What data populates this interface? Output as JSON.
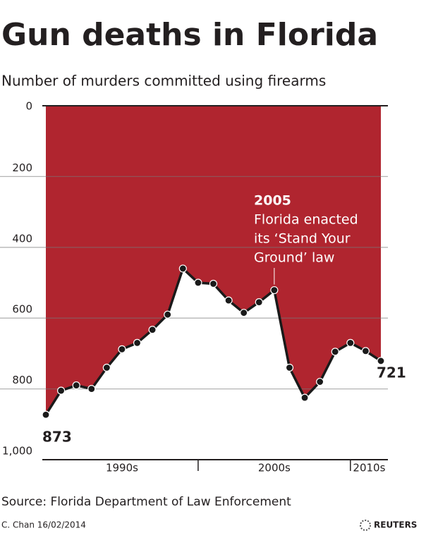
{
  "chart_data": {
    "type": "line",
    "title": "Gun deaths in Florida",
    "subtitle": "Number of murders committed using firearms",
    "categories": [
      null,
      null,
      null,
      null,
      null,
      null,
      null,
      null,
      null,
      null,
      null,
      null,
      null,
      null,
      null,
      null,
      null,
      null,
      null,
      null,
      null,
      null,
      null
    ],
    "category_groups": [
      {
        "label": "1990s",
        "size": 10
      },
      {
        "label": "2000s",
        "size": 10
      },
      {
        "label": "2010s",
        "size": 3
      }
    ],
    "values": [
      873,
      805,
      790,
      800,
      740,
      688,
      670,
      633,
      590,
      460,
      500,
      503,
      550,
      585,
      555,
      521,
      740,
      825,
      780,
      695,
      670,
      693,
      721
    ],
    "color": "#b0252f",
    "ylim": [
      0,
      1000
    ],
    "y_inverted": true,
    "yticks": [
      0,
      200,
      400,
      600,
      800,
      {
        "value": 1000,
        "label": "1,000"
      }
    ],
    "grid": true,
    "annotation": {
      "index": 15,
      "title": "2005",
      "lines": [
        "Florida enacted",
        "its ‘Stand Your",
        "Ground’ law"
      ]
    },
    "source": "Source: Florida Department of Law Enforcement",
    "credit": "C. Chan  16/02/2014",
    "logo": "REUTERS"
  }
}
